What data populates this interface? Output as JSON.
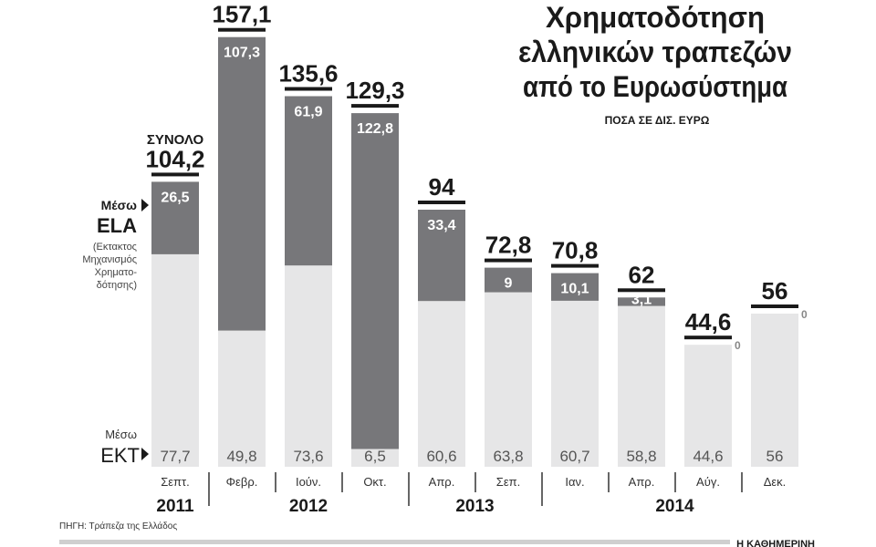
{
  "chart_data": {
    "type": "bar",
    "stacked": true,
    "title": [
      "Χρηματοδότηση",
      "ελληνικών τραπεζών",
      "από το Ευρωσύστημα"
    ],
    "subtitle": "ΠΟΣΑ ΣΕ ΔΙΣ. ΕΥΡΩ",
    "total_label": "ΣΥΝΟΛΟ",
    "categories": [
      "Σεπτ.",
      "Φεβρ.",
      "Ιούν.",
      "Οκτ.",
      "Απρ.",
      "Σεπ.",
      "Ιαν.",
      "Απρ.",
      "Αύγ.",
      "Δεκ."
    ],
    "years": [
      {
        "label": "2011",
        "span": [
          0,
          0
        ]
      },
      {
        "label": "2012",
        "span": [
          1,
          3
        ]
      },
      {
        "label": "2013",
        "span": [
          4,
          5
        ]
      },
      {
        "label": "2014",
        "span": [
          6,
          9
        ]
      }
    ],
    "totals": [
      "104,2",
      "157,1",
      "135,6",
      "129,3",
      "94",
      "72,8",
      "70,8",
      "62",
      "44,6",
      "56"
    ],
    "series": [
      {
        "name_prefix": "Μέσω",
        "name": "ΕΚΤ",
        "color": "#e6e6e7",
        "values": [
          77.7,
          49.8,
          73.6,
          6.5,
          60.6,
          63.8,
          60.7,
          58.8,
          44.6,
          56
        ],
        "labels": [
          "77,7",
          "49,8",
          "73,6",
          "6,5",
          "60,6",
          "63,8",
          "60,7",
          "58,8",
          "44,6",
          "56"
        ]
      },
      {
        "name_prefix": "Μέσω",
        "name": "ELA",
        "note": [
          "(Εκτακτος",
          "Μηχανισμός",
          "Χρηματο-",
          "δότησης)"
        ],
        "color": "#77777a",
        "values": [
          26.5,
          107.3,
          61.9,
          122.8,
          33.4,
          9,
          10.1,
          3.1,
          0,
          0
        ],
        "labels": [
          "26,5",
          "107,3",
          "61,9",
          "122,8",
          "33,4",
          "9",
          "10,1",
          "3,1",
          "0",
          "0"
        ]
      }
    ],
    "ylim": [
      0,
      160
    ],
    "grid": false
  },
  "source": "ΠΗΓΗ: Τράπεζα της Ελλάδος",
  "brand": "Η ΚΑΘΗΜΕΡΙΝΗ"
}
